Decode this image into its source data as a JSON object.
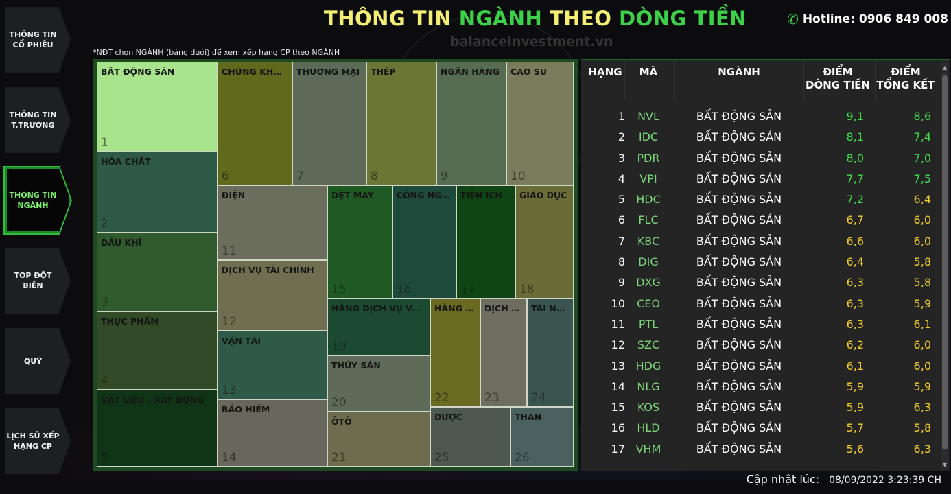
{
  "header": {
    "title_parts": [
      "THÔNG TIN",
      "NGÀNH",
      "THEO",
      "DÒNG TIỀN"
    ],
    "hotline": "Hotline: 0906 849 008",
    "watermark": "balanceinvestment.vn",
    "hint": "*NĐT chọn NGÀNH (bảng dưới) để xem xếp hạng CP theo NGÀNH"
  },
  "sidebar": {
    "items": [
      {
        "label1": "THÔNG TIN",
        "label2": "CỔ PHIẾU"
      },
      {
        "label1": "THÔNG TIN",
        "label2": "T.TRƯỜNG"
      },
      {
        "label1": "THÔNG TIN",
        "label2": "NGÀNH"
      },
      {
        "label1": "TOP ĐỘT",
        "label2": "BIẾN"
      },
      {
        "label1": "QUỸ",
        "label2": ""
      },
      {
        "label1": "LỊCH SỬ XẾP",
        "label2": "HẠNG CP"
      }
    ],
    "active_index": 2
  },
  "treemap": {
    "tiles": [
      {
        "name": "BẤT ĐỘNG SẢN",
        "num": "1",
        "color": "#a7e48c"
      },
      {
        "name": "HÓA CHẤT",
        "num": "2",
        "color": "#2e5a47"
      },
      {
        "name": "DẦU KHÍ",
        "num": "3",
        "color": "#2e5a2e"
      },
      {
        "name": "THỰC PHẨM",
        "num": "4",
        "color": "#334a26"
      },
      {
        "name": "VẬT LIỆU - XÂY DỰNG",
        "num": "5",
        "color": "#0f3516"
      },
      {
        "name": "CHỨNG KHOÁN",
        "num": "6",
        "color": "#5f6a1c"
      },
      {
        "name": "THƯƠNG MẠI",
        "num": "7",
        "color": "#5c6a57"
      },
      {
        "name": "THÉP",
        "num": "8",
        "color": "#6b7634"
      },
      {
        "name": "NGÂN HÀNG",
        "num": "9",
        "color": "#566d52"
      },
      {
        "name": "CAO SU",
        "num": "10",
        "color": "#7a7c5c"
      },
      {
        "name": "ĐIỆN",
        "num": "11",
        "color": "#6b6d5d"
      },
      {
        "name": "DỊCH VỤ TÀI CHÍNH",
        "num": "12",
        "color": "#706e50"
      },
      {
        "name": "VẬN TẢI",
        "num": "13",
        "color": "#2f5a4a"
      },
      {
        "name": "BẢO HIỂM",
        "num": "14",
        "color": "#67675b"
      },
      {
        "name": "DỆT MAY",
        "num": "15",
        "color": "#1f5a24"
      },
      {
        "name": "CÔNG NGHỆ",
        "num": "16",
        "color": "#1e4a3b"
      },
      {
        "name": "TIỆN ÍCH",
        "num": "17",
        "color": "#0f4514"
      },
      {
        "name": "GIÁO DỤC",
        "num": "18",
        "color": "#6a6c38"
      },
      {
        "name": "HÀNG DỊCH VỤ VÀ GIẢI TRÍ",
        "num": "19",
        "color": "#1b4a31"
      },
      {
        "name": "THỦY SẢN",
        "num": "20",
        "color": "#5e6b58"
      },
      {
        "name": "ÔTÔ",
        "num": "21",
        "color": "#6e6c4e"
      },
      {
        "name": "HÀNG CÔNG NGHIỆP",
        "num": "22",
        "color": "#6a6a22"
      },
      {
        "name": "DỊCH VỤ",
        "num": "23",
        "color": "#6d6d60"
      },
      {
        "name": "TÀI NGUYÊN",
        "num": "24",
        "color": "#3a5550"
      },
      {
        "name": "DƯỢC",
        "num": "25",
        "color": "#4e5852"
      },
      {
        "name": "THAN",
        "num": "26",
        "color": "#4b6160"
      }
    ]
  },
  "table": {
    "headers": {
      "rank": "HẠNG",
      "code": "MÃ",
      "industry": "NGÀNH",
      "flow1": "ĐIỂM",
      "flow2": "DÒNG TIỀN",
      "total1": "ĐIỂM",
      "total2": "TỔNG KẾT"
    },
    "rows": [
      {
        "rank": "1",
        "code": "NVL",
        "industry": "BẤT ĐỘNG SẢN",
        "flow": "9,1",
        "total": "8,6",
        "flow_color": "green",
        "total_color": "green"
      },
      {
        "rank": "2",
        "code": "IDC",
        "industry": "BẤT ĐỘNG SẢN",
        "flow": "8,1",
        "total": "7,4",
        "flow_color": "green",
        "total_color": "green"
      },
      {
        "rank": "3",
        "code": "PDR",
        "industry": "BẤT ĐỘNG SẢN",
        "flow": "8,0",
        "total": "7,0",
        "flow_color": "green",
        "total_color": "green"
      },
      {
        "rank": "4",
        "code": "VPI",
        "industry": "BẤT ĐỘNG SẢN",
        "flow": "7,7",
        "total": "7,5",
        "flow_color": "green",
        "total_color": "green"
      },
      {
        "rank": "5",
        "code": "HDC",
        "industry": "BẤT ĐỘNG SẢN",
        "flow": "7,2",
        "total": "6,4",
        "flow_color": "green",
        "total_color": "yellow"
      },
      {
        "rank": "6",
        "code": "FLC",
        "industry": "BẤT ĐỘNG SẢN",
        "flow": "6,7",
        "total": "6,0",
        "flow_color": "yellow",
        "total_color": "yellow"
      },
      {
        "rank": "7",
        "code": "KBC",
        "industry": "BẤT ĐỘNG SẢN",
        "flow": "6,6",
        "total": "6,0",
        "flow_color": "yellow",
        "total_color": "yellow"
      },
      {
        "rank": "8",
        "code": "DIG",
        "industry": "BẤT ĐỘNG SẢN",
        "flow": "6,4",
        "total": "5,8",
        "flow_color": "yellow",
        "total_color": "yellow"
      },
      {
        "rank": "9",
        "code": "DXG",
        "industry": "BẤT ĐỘNG SẢN",
        "flow": "6,3",
        "total": "5,8",
        "flow_color": "yellow",
        "total_color": "yellow"
      },
      {
        "rank": "10",
        "code": "CEO",
        "industry": "BẤT ĐỘNG SẢN",
        "flow": "6,3",
        "total": "5,9",
        "flow_color": "yellow",
        "total_color": "yellow"
      },
      {
        "rank": "11",
        "code": "PTL",
        "industry": "BẤT ĐỘNG SẢN",
        "flow": "6,3",
        "total": "6,1",
        "flow_color": "yellow",
        "total_color": "yellow"
      },
      {
        "rank": "12",
        "code": "SZC",
        "industry": "BẤT ĐỘNG SẢN",
        "flow": "6,2",
        "total": "6,0",
        "flow_color": "yellow",
        "total_color": "yellow"
      },
      {
        "rank": "13",
        "code": "HDG",
        "industry": "BẤT ĐỘNG SẢN",
        "flow": "6,1",
        "total": "6,0",
        "flow_color": "yellow",
        "total_color": "yellow"
      },
      {
        "rank": "14",
        "code": "NLG",
        "industry": "BẤT ĐỘNG SẢN",
        "flow": "5,9",
        "total": "5,9",
        "flow_color": "yellow",
        "total_color": "yellow"
      },
      {
        "rank": "15",
        "code": "KOS",
        "industry": "BẤT ĐỘNG SẢN",
        "flow": "5,9",
        "total": "6,3",
        "flow_color": "yellow",
        "total_color": "yellow"
      },
      {
        "rank": "16",
        "code": "HLD",
        "industry": "BẤT ĐỘNG SẢN",
        "flow": "5,7",
        "total": "5,8",
        "flow_color": "yellow",
        "total_color": "yellow"
      },
      {
        "rank": "17",
        "code": "VHM",
        "industry": "BẤT ĐỘNG SẢN",
        "flow": "5,6",
        "total": "6,3",
        "flow_color": "yellow",
        "total_color": "yellow"
      }
    ]
  },
  "footer": {
    "updated_label": "Cập nhật lúc:",
    "updated_time": "08/09/2022 3:23:39 CH"
  }
}
